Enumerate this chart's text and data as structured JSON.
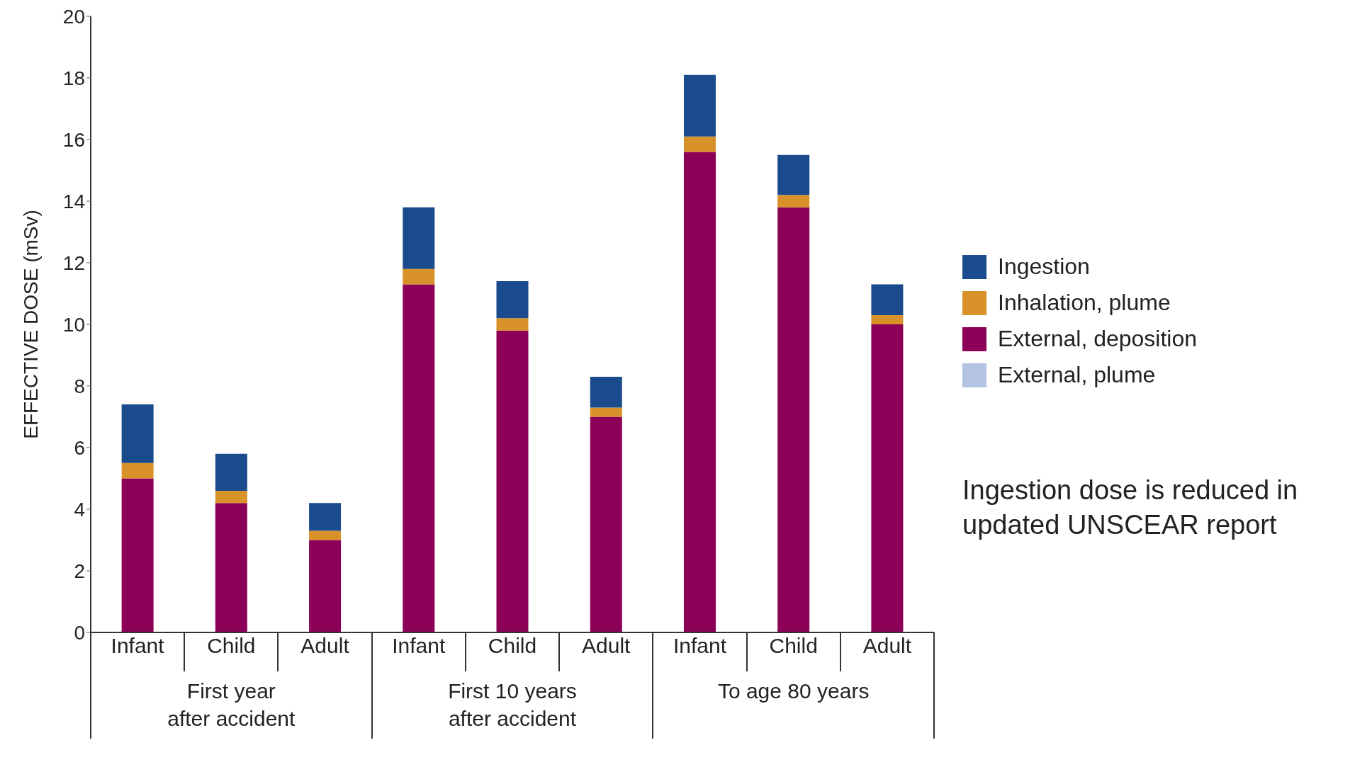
{
  "chart_data": {
    "type": "bar",
    "stacked": true,
    "ylabel": "EFFECTIVE DOSE (mSv)",
    "categories": [
      "Infant",
      "Child",
      "Adult",
      "Infant",
      "Child",
      "Adult",
      "Infant",
      "Child",
      "Adult"
    ],
    "series": [
      {
        "name": "External, plume",
        "color": "#b4c3e3",
        "values": [
          0,
          0,
          0,
          0,
          0,
          0,
          0,
          0,
          0
        ]
      },
      {
        "name": "External, deposition",
        "color": "#8c0057",
        "values": [
          5.0,
          4.2,
          3.0,
          11.3,
          9.8,
          7.0,
          15.6,
          13.8,
          10.0
        ]
      },
      {
        "name": "Inhalation, plume",
        "color": "#d9922a",
        "values": [
          0.5,
          0.4,
          0.3,
          0.5,
          0.4,
          0.3,
          0.5,
          0.4,
          0.3
        ]
      },
      {
        "name": "Ingestion",
        "color": "#1a4b8c",
        "values": [
          1.9,
          1.2,
          0.9,
          2.0,
          1.2,
          1.0,
          2.0,
          1.3,
          1.0
        ]
      }
    ],
    "ylim": [
      0,
      20
    ],
    "yticks": [
      0,
      2,
      4,
      6,
      8,
      10,
      12,
      14,
      16,
      18,
      20
    ],
    "grid": false,
    "legend": "right",
    "annotations": [
      "First year\nafter accident",
      "First 10 years\nafter accident",
      "To age 80 years",
      "Ingestion dose is reduced in\nupdated UNSCEAR report"
    ]
  }
}
